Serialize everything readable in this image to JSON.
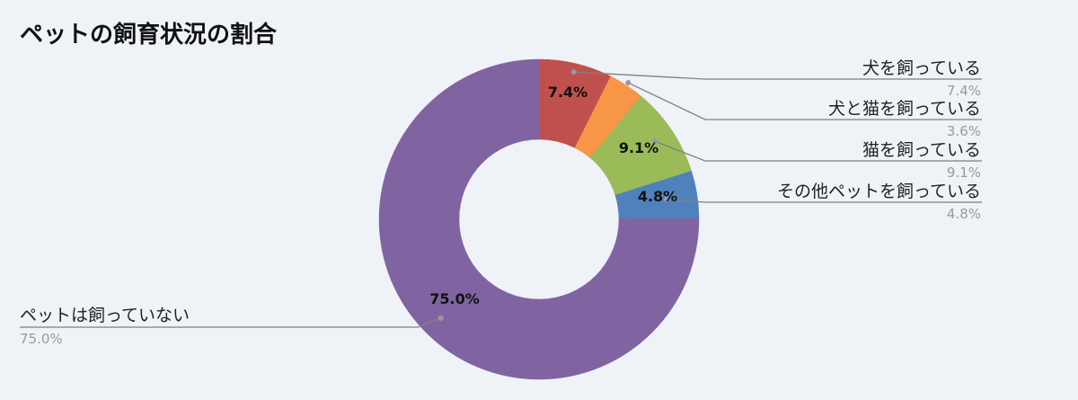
{
  "chart_data": {
    "type": "pie",
    "variant": "donut",
    "title": "ペットの飼育状況の割合",
    "start_angle": "12 o'clock, clockwise",
    "slices": [
      {
        "label": "犬を飼っている",
        "value": 7.4,
        "display": "7.4%",
        "color": "#c0504d"
      },
      {
        "label": "犬と猫を飼っている",
        "value": 3.6,
        "display": "3.6%",
        "color": "#f79646"
      },
      {
        "label": "猫を飼っている",
        "value": 9.1,
        "display": "9.1%",
        "color": "#9bbb59"
      },
      {
        "label": "その他ペットを飼っている",
        "value": 4.8,
        "display": "4.8%",
        "color": "#4f81bd"
      },
      {
        "label": "ペットは飼っていない",
        "value": 75.0,
        "display": "75.0%",
        "color": "#8064a2"
      }
    ],
    "inner_labels": [
      "7.4%",
      "",
      "9.1%",
      "4.8%",
      "75.0%"
    ],
    "legend": "leader-line callouts"
  }
}
